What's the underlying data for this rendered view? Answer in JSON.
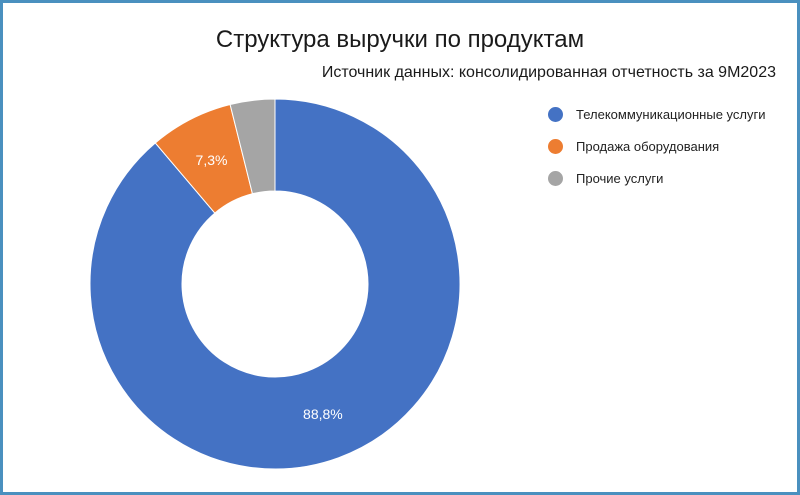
{
  "chart_data": {
    "type": "pie",
    "subtype": "donut",
    "title": "Структура выручки по продуктам",
    "subtitle": "Источник данных: консолидированная отчетность за 9М2023",
    "categories": [
      "Телекоммуникационные услуги",
      "Продажа оборудования",
      "Прочие услуги"
    ],
    "values": [
      88.8,
      7.3,
      3.9
    ],
    "data_labels": [
      "88,8%",
      "7,3%",
      ""
    ],
    "colors": [
      "#4472c4",
      "#ed7d31",
      "#a5a5a5"
    ],
    "legend_position": "right"
  },
  "border_color": "#4a90bf"
}
